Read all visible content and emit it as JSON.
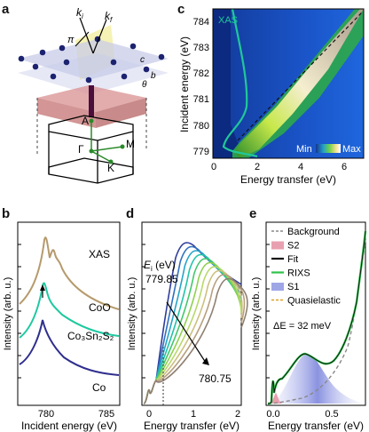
{
  "panels": {
    "a": "a",
    "b": "b",
    "c": "c",
    "d": "d",
    "e": "e"
  },
  "panel_a": {
    "labels": {
      "ki": "k",
      "ki_sub": "i",
      "kf": "k",
      "kf_sub": "f",
      "pi": "π",
      "c": "c",
      "b": "b",
      "a": "a",
      "theta": "θ",
      "A": "A",
      "Gamma": "Γ",
      "M": "M",
      "K": "K"
    }
  },
  "panel_b": {
    "ylabel": "Intensity (arb. u.)",
    "xlabel": "Incident energy (eV)",
    "xticks": [
      "780",
      "785"
    ],
    "curve_labels": {
      "xas": "XAS",
      "coo": "CoO",
      "co3sn2s2": "Co₃Sn₂S₂",
      "co": "Co"
    },
    "colors": {
      "xas": "#b59a6c",
      "coo": "#1ec8a0",
      "co3sn2s2": "#1fae98",
      "co": "#2f2f8f"
    }
  },
  "panel_c": {
    "ylabel": "Incident energy (eV)",
    "xlabel": "Energy transfer (eV)",
    "yticks": [
      "779",
      "780",
      "781",
      "782",
      "783",
      "784"
    ],
    "xticks": [
      "0",
      "2",
      "4",
      "6"
    ],
    "inset_label": "XAS",
    "colorbar_min": "Min",
    "colorbar_max": "Max"
  },
  "panel_d": {
    "ylabel": "Intensity (arb. u.)",
    "xlabel": "Energy transfer (eV)",
    "xticks": [
      "0",
      "1",
      "2"
    ],
    "ei_label": "E",
    "ei_sub": "i",
    "ei_unit": " (eV)",
    "start_energy": "779.85",
    "end_energy": "780.75"
  },
  "panel_e": {
    "ylabel": "Intensity (arb. u.)",
    "xlabel": "Energy transfer (eV)",
    "xticks": [
      "0.0",
      "0.5"
    ],
    "legend": [
      {
        "label": "Background",
        "color": "#888888",
        "kind": "dash"
      },
      {
        "label": "S2",
        "color": "#e8a0b0",
        "kind": "box"
      },
      {
        "label": "Fit",
        "color": "#111111",
        "kind": "line"
      },
      {
        "label": "RIXS",
        "color": "#2ec24a",
        "kind": "line"
      },
      {
        "label": "S1",
        "color": "#9fa6e6",
        "kind": "box"
      },
      {
        "label": "Quasielastic",
        "color": "#e0a020",
        "kind": "dash"
      }
    ],
    "delta_label": "ΔE = 32 meV"
  }
}
